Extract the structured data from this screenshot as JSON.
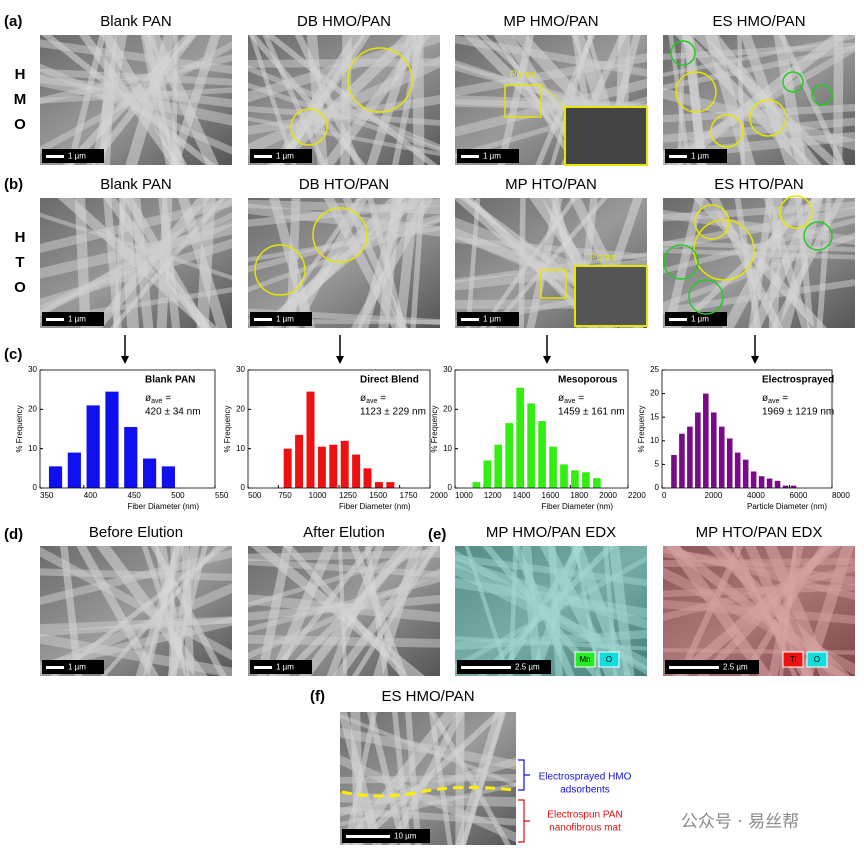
{
  "panels": {
    "a": {
      "label": "(a)",
      "row_letters": [
        "H",
        "M",
        "O"
      ],
      "titles": [
        "Blank PAN",
        "DB HMO/PAN",
        "MP HMO/PAN",
        "ES HMO/PAN"
      ],
      "scale_bar": "1 µm",
      "pores": "Pores"
    },
    "b": {
      "label": "(b)",
      "row_letters": [
        "H",
        "T",
        "O"
      ],
      "titles": [
        "Blank PAN",
        "DB HTO/PAN",
        "MP HTO/PAN",
        "ES HTO/PAN"
      ],
      "scale_bar": "1 µm",
      "pores": "Pores"
    },
    "c": {
      "label": "(c)"
    },
    "d": {
      "label": "(d)",
      "titles": [
        "Before Elution",
        "After Elution"
      ],
      "scale_bar": "1 µm"
    },
    "e": {
      "label": "(e)",
      "titles": [
        "MP HMO/PAN EDX",
        "MP HTO/PAN EDX"
      ],
      "scale_bar": "2.5 µm",
      "legends": [
        [
          "Mn",
          "O"
        ],
        [
          "Ti",
          "O"
        ]
      ]
    },
    "f": {
      "label": "(f)",
      "title": "ES HMO/PAN",
      "scale_bar": "10 µm",
      "top_layer": [
        "Electrosprayed HMO",
        "adsorbents"
      ],
      "bottom_layer": [
        "Electrospun PAN",
        "nanofibrous mat"
      ]
    }
  },
  "watermark": "公众号 · 易丝帮",
  "chart_data": [
    {
      "type": "histogram",
      "title": "Blank PAN",
      "stat_symbol": "ø",
      "stat_subscript": "ave",
      "stat_equals": "=",
      "stat_value": "420 ± 34 nm",
      "x_label": "Fiber Diameter (nm)",
      "y_label": "% Frequency",
      "color": "#1010ee",
      "bins": [
        357,
        378.5,
        400,
        421.5,
        443,
        464.5,
        486,
        507.5
      ],
      "values": [
        5.5,
        9,
        21,
        24.5,
        15.5,
        7.5,
        5.5
      ],
      "xlim": [
        350,
        550
      ],
      "xticks": [
        350,
        400,
        450,
        500,
        550
      ],
      "ylim": [
        0,
        30
      ],
      "yticks": [
        0,
        10,
        20,
        30
      ]
    },
    {
      "type": "histogram",
      "title": "Direct Blend",
      "stat_symbol": "ø",
      "stat_subscript": "ave",
      "stat_equals": "=",
      "stat_value": "1123 ± 229 nm",
      "x_label": "Fiber Diameter (nm)",
      "y_label": "% Frequency",
      "color": "#ee1111",
      "bins": [
        780,
        874,
        968,
        1062,
        1156,
        1250,
        1344,
        1438,
        1532,
        1626,
        1720
      ],
      "values": [
        10,
        13.5,
        24.5,
        10.5,
        11,
        12,
        8.5,
        5,
        1.5,
        1.5
      ],
      "xlim": [
        500,
        2000
      ],
      "xticks": [
        500,
        750,
        1000,
        1250,
        1500,
        1750,
        2000
      ],
      "ylim": [
        0,
        30
      ],
      "yticks": [
        0,
        10,
        20,
        30
      ]
    },
    {
      "type": "histogram",
      "title": "Mesoporous",
      "stat_symbol": "ø",
      "stat_subscript": "ave",
      "stat_equals": "=",
      "stat_value": "1459 ± 161 nm",
      "x_label": "Fiber Diameter (nm)",
      "y_label": "% Frequency",
      "color": "#33ee11",
      "bins": [
        1110,
        1186,
        1262,
        1338,
        1414,
        1490,
        1566,
        1642,
        1718,
        1794,
        1870,
        1946,
        2022
      ],
      "values": [
        1.5,
        7,
        11,
        16.5,
        25.5,
        21.5,
        17,
        10.5,
        6,
        4.5,
        4,
        2.5
      ],
      "xlim": [
        1000,
        2200
      ],
      "xticks": [
        1000,
        1200,
        1400,
        1600,
        1800,
        2000,
        2200
      ],
      "ylim": [
        0,
        30
      ],
      "yticks": [
        0,
        10,
        20,
        30
      ]
    },
    {
      "type": "histogram",
      "title": "Electrosprayed",
      "stat_symbol": "ø",
      "stat_subscript": "ave",
      "stat_equals": "=",
      "stat_value": "1969 ± 1219 nm",
      "x_label": "Particle Diameter (nm)",
      "y_label": "% Frequency",
      "color": "#7a0a8a",
      "bins": [
        375,
        750,
        1125,
        1500,
        1875,
        2250,
        2625,
        3000,
        3375,
        3750,
        4125,
        4500,
        4875,
        5250,
        5625,
        6000,
        6375
      ],
      "values": [
        7,
        11.5,
        13,
        16,
        20,
        16,
        13,
        10.5,
        7.5,
        6,
        3.5,
        2.5,
        2,
        1.5,
        0.5,
        0.5
      ],
      "xlim": [
        0,
        8000
      ],
      "xticks": [
        0,
        2000,
        4000,
        6000,
        8000
      ],
      "ylim": [
        0,
        25
      ],
      "yticks": [
        0,
        5,
        10,
        15,
        20,
        25
      ]
    }
  ]
}
